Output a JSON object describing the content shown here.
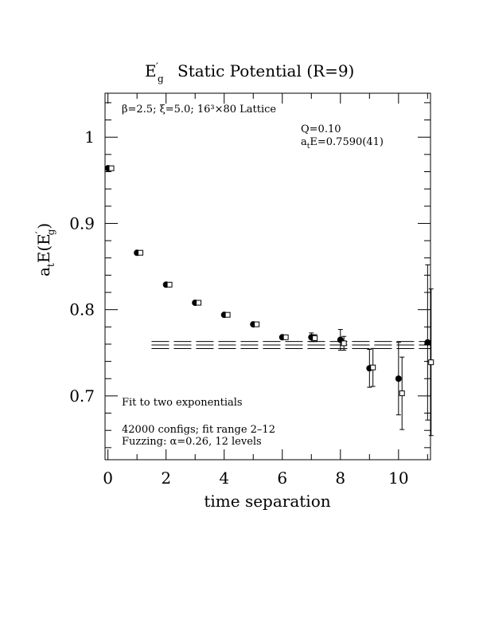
{
  "chart_data": {
    "type": "scatter",
    "title_main": "E",
    "title_sub": "g",
    "title_prime": "′",
    "title_rest": "Static Potential (R=9)",
    "xlabel": "time separation",
    "ylabel_parts": {
      "a": "a",
      "t_sub": "t",
      "E": "E(E",
      "prime": "′",
      "g_sub": "g",
      "close": ")"
    },
    "xlim": [
      -0.1,
      11.1
    ],
    "ylim": [
      0.626,
      1.051
    ],
    "x_ticks": [
      0,
      2,
      4,
      6,
      8,
      10
    ],
    "x_tick_labels": [
      "0",
      "2",
      "4",
      "6",
      "8",
      "10"
    ],
    "y_ticks": [
      0.7,
      0.8,
      0.9,
      1.0
    ],
    "y_tick_labels": [
      "0.7",
      "0.8",
      "0.9",
      "1"
    ],
    "annotations": {
      "lattice": "β=2.5; ξ=5.0; 16³×80 Lattice",
      "q_value": "Q=0.10",
      "energy_a": "a",
      "energy_t": "t",
      "energy_rest": "E=0.7590(41)",
      "fit_note": "Fit to two exponentials",
      "configs": "42000 configs; fit range 2–12",
      "fuzzing": "Fuzzing: α=0.26, 12 levels"
    },
    "series": [
      {
        "marker": "filled-circle",
        "x": [
          0,
          1,
          2,
          3,
          4,
          5,
          6,
          7,
          8,
          9,
          10,
          11
        ],
        "y": [
          0.964,
          0.866,
          0.829,
          0.808,
          0.794,
          0.783,
          0.768,
          0.768,
          0.765,
          0.732,
          0.72,
          0.762
        ],
        "err": [
          0,
          0,
          0,
          0,
          0,
          0,
          0,
          0.005,
          0.012,
          0.022,
          0.042,
          0.09
        ]
      },
      {
        "marker": "open-square",
        "x": [
          0.12,
          1.12,
          2.12,
          3.12,
          4.12,
          5.12,
          6.12,
          7.12,
          8.12,
          9.12,
          10.12,
          11.12
        ],
        "y": [
          0.964,
          0.866,
          0.829,
          0.808,
          0.794,
          0.783,
          0.768,
          0.767,
          0.761,
          0.733,
          0.703,
          0.739
        ],
        "err": [
          0,
          0,
          0,
          0,
          0,
          0,
          0,
          0.004,
          0.008,
          0.022,
          0.042,
          0.085
        ]
      }
    ],
    "fit": {
      "value": 0.759,
      "error": 0.0041,
      "x_start": 1.5,
      "x_end": 11.1
    }
  }
}
